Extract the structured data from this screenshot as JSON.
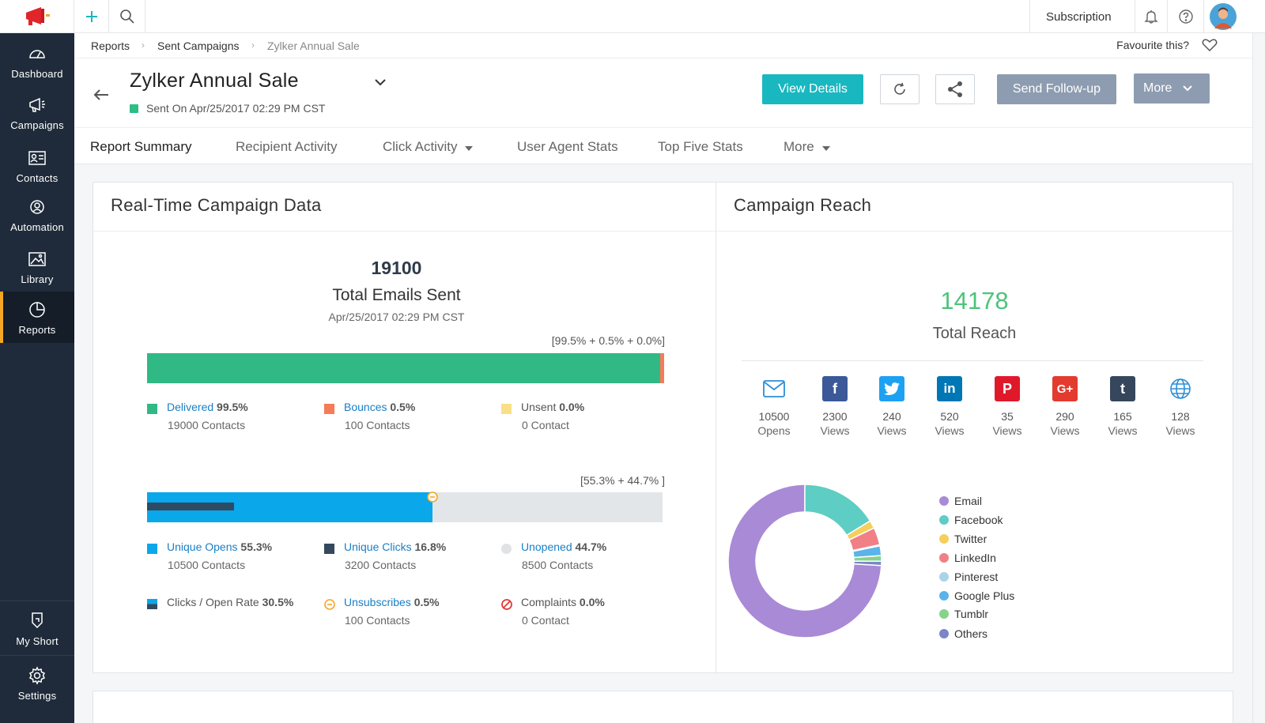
{
  "sidebar": {
    "items": [
      {
        "label": "Dashboard",
        "icon": "dashboard-icon"
      },
      {
        "label": "Campaigns",
        "icon": "megaphone-icon"
      },
      {
        "label": "Contacts",
        "icon": "contact-card-icon"
      },
      {
        "label": "Automation",
        "icon": "automation-icon"
      },
      {
        "label": "Library",
        "icon": "image-icon"
      },
      {
        "label": "Reports",
        "icon": "pie-chart-icon",
        "active": true
      }
    ],
    "bottom_items": [
      {
        "label": "My Short",
        "icon": "shortcut-icon"
      },
      {
        "label": "Settings",
        "icon": "gear-icon"
      }
    ]
  },
  "topbar": {
    "subscription_label": "Subscription"
  },
  "breadcrumb": [
    "Reports",
    "Sent Campaigns",
    "Zylker Annual Sale"
  ],
  "favourite_label": "Favourite this?",
  "header": {
    "title": "Zylker Annual Sale",
    "sent_on": "Sent On Apr/25/2017 02:29 PM CST",
    "view_details": "View Details",
    "send_followup": "Send Follow-up",
    "more": "More"
  },
  "tabs": [
    {
      "label": "Report Summary",
      "active": true
    },
    {
      "label": "Recipient Activity"
    },
    {
      "label": "Click Activity",
      "dropdown": true
    },
    {
      "label": "User Agent Stats"
    },
    {
      "label": "Top Five Stats"
    },
    {
      "label": "More",
      "dropdown": true
    }
  ],
  "realtime": {
    "title": "Real-Time Campaign Data",
    "total": "19100",
    "total_label": "Total Emails Sent",
    "date": "Apr/25/2017 02:29 PM CST",
    "bar1_caption": "[99.5% + 0.5% + 0.0%]",
    "bar1": {
      "delivered": 99.5,
      "bounces": 0.5,
      "unsent": 0.0
    },
    "bar2_caption": "[55.3% + 44.7% ]",
    "bar2": {
      "opens": 55.3,
      "clicks": 16.8,
      "unsubscribes": 0.5,
      "unopened": 44.7
    },
    "delivered": {
      "name": "Delivered",
      "pct": "99.5%",
      "sub": "19000 Contacts"
    },
    "bounces": {
      "name": "Bounces",
      "pct": "0.5%",
      "sub": "100 Contacts"
    },
    "unsent": {
      "name": "Unsent",
      "pct": "0.0%",
      "sub": "0 Contact"
    },
    "opens": {
      "name": "Unique Opens",
      "pct": "55.3%",
      "sub": "10500 Contacts"
    },
    "clicks": {
      "name": "Unique Clicks",
      "pct": "16.8%",
      "sub": "3200 Contacts"
    },
    "unopened": {
      "name": "Unopened",
      "pct": "44.7%",
      "sub": "8500 Contacts"
    },
    "cto": {
      "name": "Clicks / Open Rate",
      "pct": "30.5%"
    },
    "unsubscribes": {
      "name": "Unsubscribes",
      "pct": "0.5%",
      "sub": "100 Contacts"
    },
    "complaints": {
      "name": "Complaints",
      "pct": "0.0%",
      "sub": "0 Contact"
    }
  },
  "reach": {
    "title": "Campaign Reach",
    "total": "14178",
    "total_label": "Total Reach",
    "channels": [
      {
        "value": "10500",
        "unit": "Opens",
        "icon": "email-icon",
        "color": "#2b8fd6"
      },
      {
        "value": "2300",
        "unit": "Views",
        "icon": "facebook-icon",
        "color": "#3b5998"
      },
      {
        "value": "240",
        "unit": "Views",
        "icon": "twitter-icon",
        "color": "#1da1f2"
      },
      {
        "value": "520",
        "unit": "Views",
        "icon": "linkedin-icon",
        "color": "#0077b5"
      },
      {
        "value": "35",
        "unit": "Views",
        "icon": "pinterest-icon",
        "color": "#e0192a"
      },
      {
        "value": "290",
        "unit": "Views",
        "icon": "google-plus-icon",
        "color": "#e33b2e"
      },
      {
        "value": "165",
        "unit": "Views",
        "icon": "tumblr-icon",
        "color": "#36465d"
      },
      {
        "value": "128",
        "unit": "Views",
        "icon": "globe-icon",
        "color": "#2b8fd6"
      }
    ]
  },
  "chart_data": {
    "type": "pie",
    "donut": true,
    "categories": [
      "Email",
      "Facebook",
      "Twitter",
      "LinkedIn",
      "Pinterest",
      "Google Plus",
      "Tumblr",
      "Others"
    ],
    "values": [
      10500,
      2300,
      240,
      520,
      35,
      290,
      165,
      128
    ],
    "colors": [
      "#a98ad6",
      "#5ecdc3",
      "#f5cf5c",
      "#f07f86",
      "#a8d4ea",
      "#5ab4ea",
      "#86d38b",
      "#7b86c9"
    ],
    "legend_position": "right"
  }
}
